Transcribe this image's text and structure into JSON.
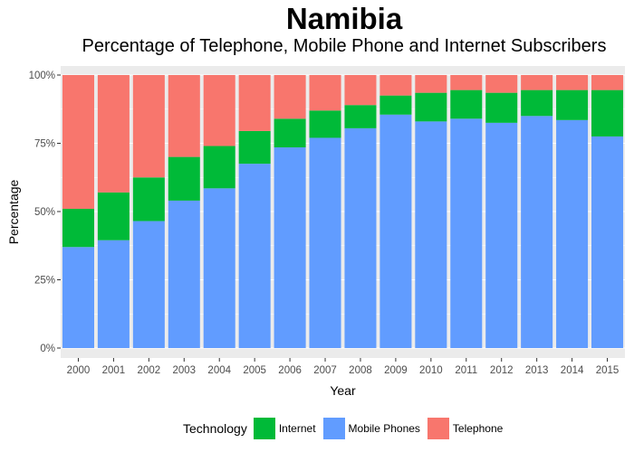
{
  "chart_data": {
    "type": "bar",
    "stacked": true,
    "title": "Namibia",
    "subtitle": "Percentage of Telephone, Mobile Phone and Internet Subscribers",
    "xlabel": "Year",
    "ylabel": "Percentage",
    "ylim": [
      0,
      1
    ],
    "yticks": [
      "0%",
      "25%",
      "50%",
      "75%",
      "100%"
    ],
    "categories": [
      "2000",
      "2001",
      "2002",
      "2003",
      "2004",
      "2005",
      "2006",
      "2007",
      "2008",
      "2009",
      "2010",
      "2011",
      "2012",
      "2013",
      "2014",
      "2015"
    ],
    "series": [
      {
        "name": "Mobile Phones",
        "color": "#619CFF",
        "values": [
          0.37,
          0.395,
          0.465,
          0.54,
          0.585,
          0.675,
          0.735,
          0.77,
          0.805,
          0.855,
          0.83,
          0.84,
          0.825,
          0.85,
          0.835,
          0.775
        ]
      },
      {
        "name": "Internet",
        "color": "#00BA38",
        "values": [
          0.14,
          0.175,
          0.16,
          0.16,
          0.155,
          0.12,
          0.105,
          0.1,
          0.085,
          0.07,
          0.105,
          0.105,
          0.11,
          0.095,
          0.11,
          0.17
        ]
      },
      {
        "name": "Telephone",
        "color": "#F8766D",
        "values": [
          0.49,
          0.43,
          0.375,
          0.3,
          0.26,
          0.205,
          0.16,
          0.13,
          0.11,
          0.075,
          0.065,
          0.055,
          0.065,
          0.055,
          0.055,
          0.055
        ]
      }
    ],
    "legend": {
      "title": "Technology",
      "position": "bottom",
      "order": [
        "Internet",
        "Mobile Phones",
        "Telephone"
      ]
    },
    "grid": true,
    "panel_background": "#EBEBEB"
  }
}
